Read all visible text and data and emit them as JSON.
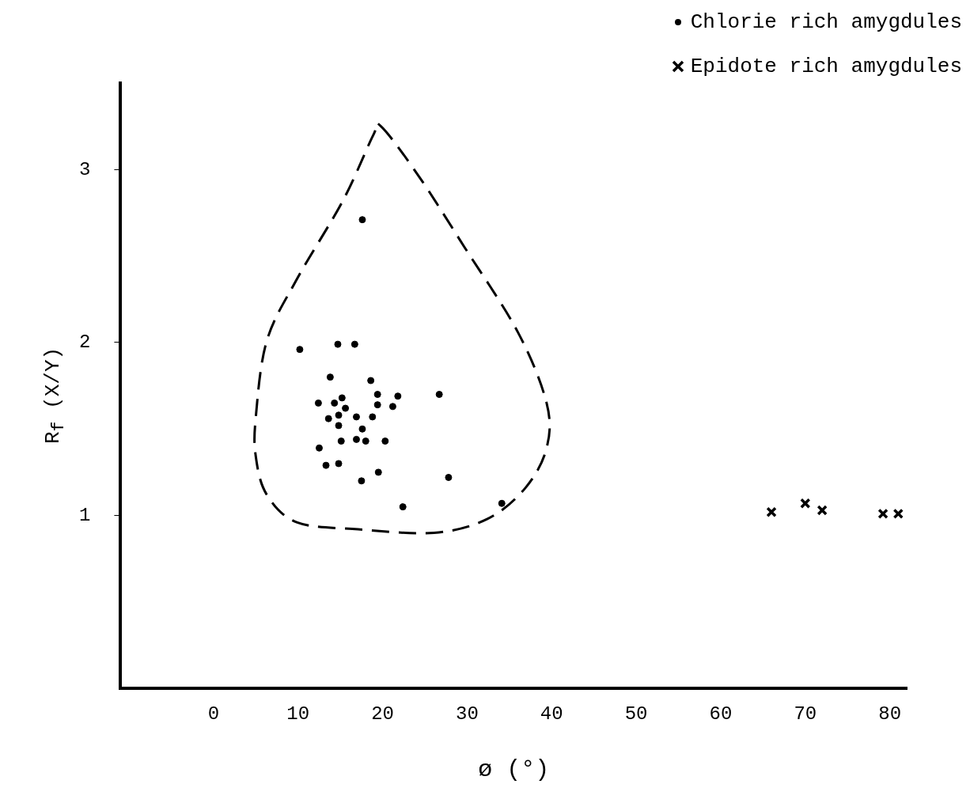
{
  "chart_data": {
    "type": "scatter",
    "xlabel": "ø (°)",
    "ylabel": "R$_{f}$ (X/Y)",
    "xlim": [
      -11,
      82
    ],
    "ylim": [
      0,
      3.5
    ],
    "xticks": [
      0,
      10,
      20,
      30,
      40,
      50,
      60,
      70,
      80
    ],
    "yticks": [
      1,
      2,
      3
    ],
    "grid": false,
    "legend": "top right",
    "series": [
      {
        "name": "Chlorie rich amygdules",
        "color": "#000000",
        "marker": "circle",
        "x": [
          17.6,
          10.2,
          14.7,
          16.7,
          13.8,
          18.6,
          19.4,
          21.8,
          26.7,
          12.4,
          14.3,
          15.2,
          15.6,
          19.4,
          21.2,
          13.6,
          14.8,
          14.8,
          16.9,
          18.8,
          17.6,
          16.9,
          18.0,
          20.3,
          15.1,
          12.5,
          14.8,
          13.3,
          19.5,
          17.5,
          27.8,
          22.4,
          34.1
        ],
        "values": [
          2.71,
          1.96,
          1.99,
          1.99,
          1.8,
          1.78,
          1.7,
          1.69,
          1.7,
          1.65,
          1.65,
          1.68,
          1.62,
          1.64,
          1.63,
          1.56,
          1.58,
          1.52,
          1.57,
          1.57,
          1.5,
          1.44,
          1.43,
          1.43,
          1.43,
          1.39,
          1.3,
          1.29,
          1.25,
          1.2,
          1.22,
          1.05,
          1.07
        ]
      },
      {
        "name": "Epidote rich amygdules",
        "color": "#000000",
        "marker": "cross",
        "x": [
          66.0,
          70.0,
          72.0,
          79.2,
          81.0
        ],
        "values": [
          1.02,
          1.07,
          1.03,
          1.01,
          1.01
        ]
      }
    ]
  }
}
